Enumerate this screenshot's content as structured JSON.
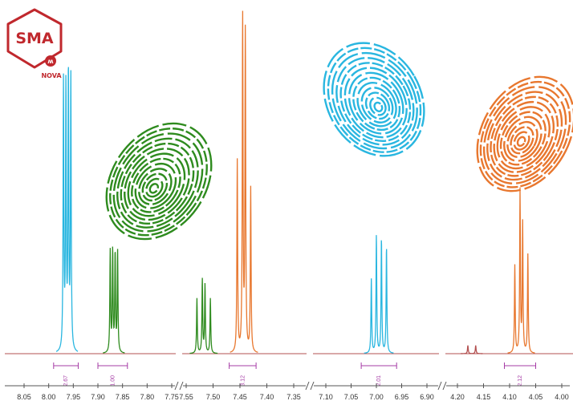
{
  "logo": {
    "text": "SMA",
    "subtext": "NOVA"
  },
  "colors": {
    "baseline": "#b35050",
    "cyan": "#29b6e0",
    "green": "#2e8b1e",
    "orange": "#e8772e",
    "integral": "#a63ca6",
    "axis": "#555555"
  },
  "chart_data": {
    "type": "line",
    "title": "",
    "xlabel": "",
    "ylabel": "",
    "x_reversed": true,
    "axis_breaks": [
      7.75,
      7.35,
      6.9
    ],
    "tick_labels": [
      "8.05",
      "8.00",
      "7.95",
      "7.90",
      "7.85",
      "7.80",
      "7.75",
      "7.55",
      "7.50",
      "7.45",
      "7.40",
      "7.35",
      "7.10",
      "7.05",
      "7.00",
      "6.95",
      "6.90",
      "4.20",
      "4.15",
      "4.10",
      "4.05",
      "4.00"
    ],
    "series": [
      {
        "color": "cyan",
        "peaks_ppm": [
          7.97,
          7.965,
          7.96,
          7.955
        ],
        "relative_heights": [
          0.98,
          0.96,
          1.02,
          1.0
        ]
      },
      {
        "color": "green",
        "peaks_ppm": [
          7.875,
          7.87,
          7.865,
          7.86
        ],
        "relative_heights": [
          0.37,
          0.37,
          0.36,
          0.37
        ]
      },
      {
        "color": "green",
        "peaks_ppm": [
          7.53,
          7.52,
          7.515,
          7.505
        ],
        "relative_heights": [
          0.2,
          0.27,
          0.25,
          0.2
        ]
      },
      {
        "color": "orange",
        "peaks_ppm": [
          7.455,
          7.445,
          7.44,
          7.43
        ],
        "relative_heights": [
          0.7,
          1.23,
          1.17,
          0.6
        ]
      },
      {
        "color": "cyan",
        "peaks_ppm": [
          7.01,
          7.0,
          6.99,
          6.98
        ],
        "relative_heights": [
          0.27,
          0.43,
          0.42,
          0.39
        ]
      },
      {
        "color": "baseline",
        "peaks_ppm": [
          4.18,
          4.165
        ],
        "relative_heights": [
          0.03,
          0.03
        ]
      },
      {
        "color": "orange",
        "peaks_ppm": [
          4.09,
          4.08,
          4.075,
          4.065
        ],
        "relative_heights": [
          0.32,
          0.59,
          0.47,
          0.36
        ]
      }
    ],
    "integrals": [
      {
        "label": "2.67",
        "range_ppm": [
          7.99,
          7.94
        ]
      },
      {
        "label": "1.00",
        "range_ppm": [
          7.9,
          7.84
        ]
      },
      {
        "label": "3.12",
        "range_ppm": [
          7.47,
          7.42
        ]
      },
      {
        "label": "2.01",
        "range_ppm": [
          7.03,
          6.96
        ]
      },
      {
        "label": "2.12",
        "range_ppm": [
          4.11,
          4.05
        ]
      }
    ]
  }
}
